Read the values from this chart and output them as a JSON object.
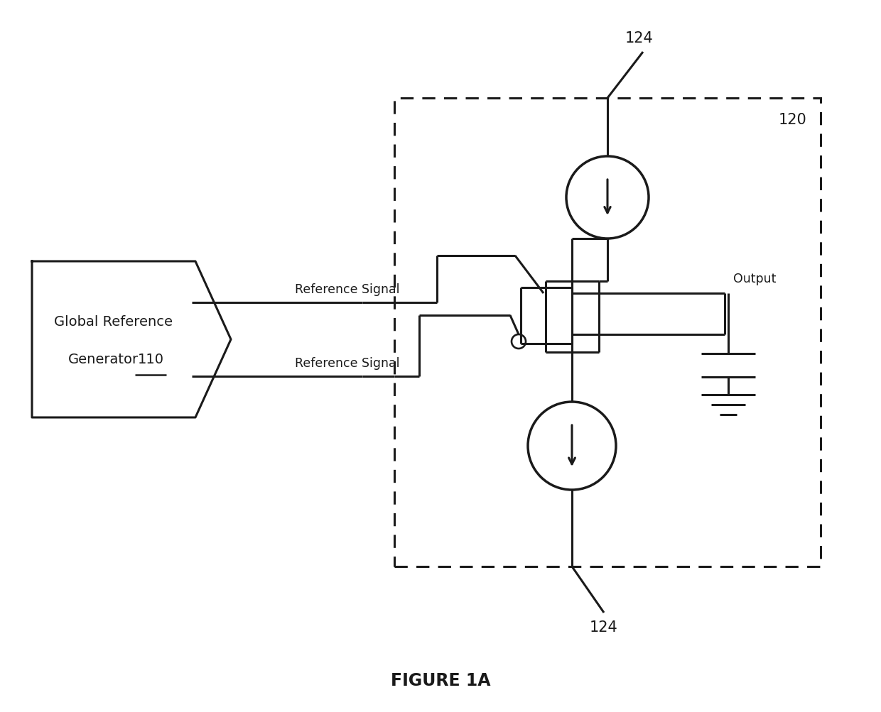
{
  "title": "FIGURE 1A",
  "title_fontsize": 17,
  "title_fontweight": "bold",
  "bg_color": "#ffffff",
  "line_color": "#1a1a1a",
  "line_width": 2.2,
  "label_110_line1": "Global Reference",
  "label_110_line2": "Generator",
  "label_110_num": "110",
  "label_120": "120",
  "label_124_top": "124",
  "label_124_bot": "124",
  "label_ref1": "Reference Signal",
  "label_ref2": "Reference Signal",
  "label_output": "Output",
  "font_size_main": 14,
  "font_size_num": 15
}
